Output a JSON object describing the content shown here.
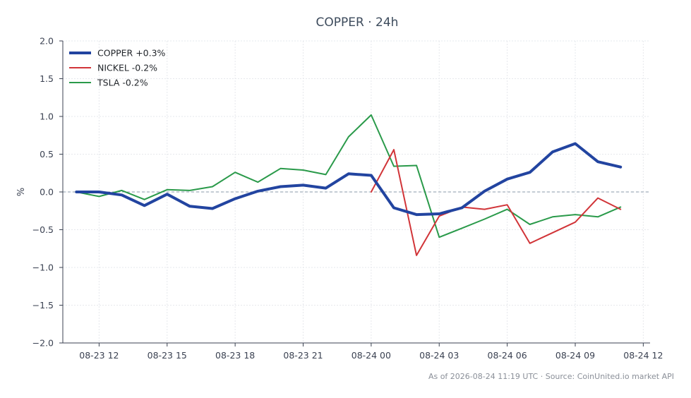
{
  "chart_data": {
    "type": "line",
    "title": "COPPER · 24h",
    "ylabel": "%",
    "xlabel": "",
    "ylim": [
      -2.0,
      2.0
    ],
    "yticks": [
      2.0,
      1.5,
      1.0,
      0.5,
      0.0,
      -0.5,
      -1.0,
      -1.5,
      -2.0
    ],
    "ytick_labels": [
      "2.0",
      "1.5",
      "1.0",
      "0.5",
      "0.0",
      "−0.5",
      "−1.0",
      "−1.5",
      "−2.0"
    ],
    "xlim": [
      10.4,
      36.3
    ],
    "xticks": [
      12,
      15,
      18,
      21,
      24,
      27,
      30,
      33,
      36
    ],
    "xtick_labels": [
      "08-23 12",
      "08-23 15",
      "08-23 18",
      "08-23 21",
      "08-24 00",
      "08-24 03",
      "08-24 06",
      "08-24 09",
      "08-24 12"
    ],
    "grid": true,
    "zero_line": true,
    "legend_position": "top-left",
    "series": [
      {
        "name": "COPPER +0.3%",
        "color": "#2244a0",
        "width": 4,
        "x": [
          11,
          12,
          13,
          14,
          15,
          16,
          17,
          18,
          19,
          20,
          21,
          22,
          23,
          24,
          25,
          26,
          27,
          28,
          29,
          30,
          31,
          32,
          33,
          34,
          35
        ],
        "y": [
          0.0,
          0.0,
          -0.04,
          -0.18,
          -0.03,
          -0.19,
          -0.22,
          -0.09,
          0.01,
          0.07,
          0.09,
          0.05,
          0.24,
          0.22,
          -0.21,
          -0.3,
          -0.29,
          -0.21,
          0.01,
          0.17,
          0.26,
          0.53,
          0.64,
          0.4,
          0.33
        ]
      },
      {
        "name": "NICKEL -0.2%",
        "color": "#d13438",
        "width": 2,
        "x": [
          24,
          25,
          26,
          27,
          28,
          29,
          30,
          31,
          32,
          33,
          34,
          35
        ],
        "y": [
          0.0,
          0.56,
          -0.84,
          -0.32,
          -0.2,
          -0.23,
          -0.17,
          -0.68,
          -0.54,
          -0.4,
          -0.08,
          -0.23
        ]
      },
      {
        "name": "TSLA -0.2%",
        "color": "#2a9a4a",
        "width": 2,
        "x": [
          11,
          12,
          13,
          14,
          15,
          16,
          17,
          18,
          19,
          20,
          21,
          22,
          23,
          24,
          25,
          26,
          27,
          28,
          29,
          30,
          31,
          32,
          33,
          34,
          35
        ],
        "y": [
          0.0,
          -0.06,
          0.02,
          -0.1,
          0.03,
          0.02,
          0.07,
          0.26,
          0.13,
          0.31,
          0.29,
          0.23,
          0.73,
          1.02,
          0.34,
          0.35,
          -0.6,
          -0.48,
          -0.36,
          -0.23,
          -0.43,
          -0.33,
          -0.3,
          -0.33,
          -0.2
        ]
      }
    ],
    "footer": "As of 2026-08-24 11:19 UTC · Source: CoinUnited.io market API"
  }
}
